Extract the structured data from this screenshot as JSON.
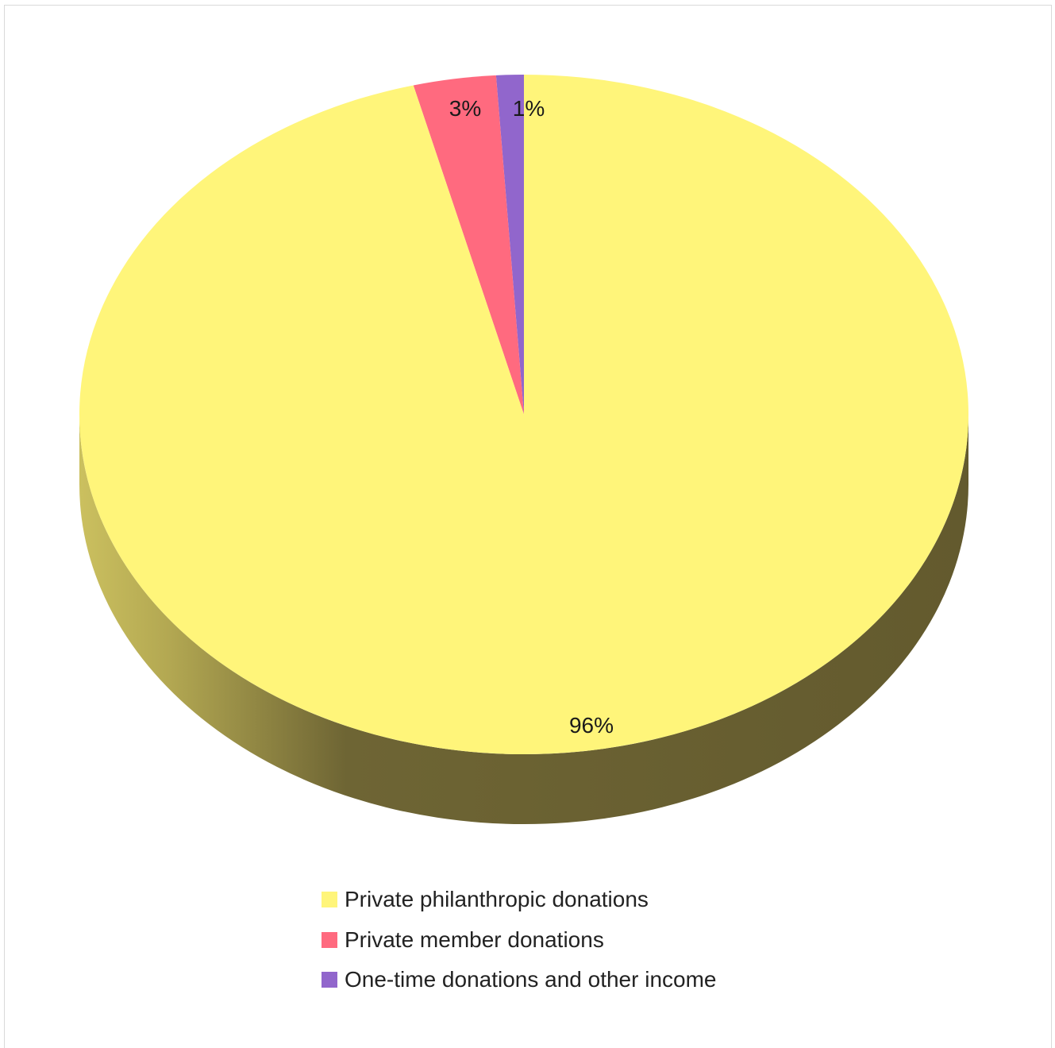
{
  "chart_data": {
    "type": "pie",
    "style": "3d",
    "start_angle": "top (12 o'clock), clockwise",
    "legend_position": "bottom",
    "title": "",
    "categories": [
      "Private philanthropic donations",
      "Private member donations",
      "One-time donations and other income"
    ],
    "values": [
      96,
      3,
      1
    ],
    "labels": [
      "96%",
      "3%",
      "1%"
    ],
    "colors": [
      "#fff57a",
      "#ff6a7f",
      "#9166cc"
    ],
    "side_color": "#6b6131"
  }
}
